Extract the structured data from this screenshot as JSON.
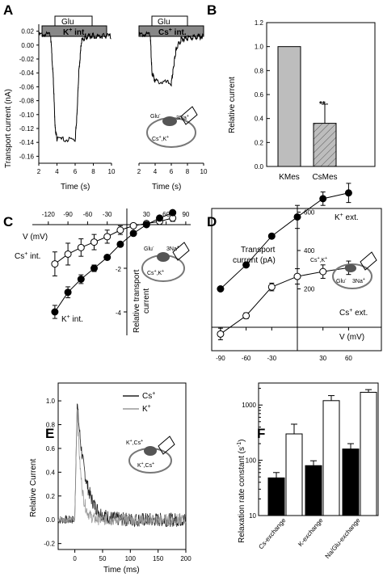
{
  "panels": {
    "A": {
      "label": "A",
      "ylabel": "Transport current (nA)",
      "xlabel": "Time (s)",
      "bar1": "Glu",
      "int1": "K",
      "bar2": "Glu",
      "int2": "Cs",
      "int_suffix": " int."
    },
    "B": {
      "label": "B",
      "ylabel": "Relative current",
      "sig": "**"
    },
    "C": {
      "label": "C",
      "xlabel": "V (mV)",
      "ylabel": "Relative transport",
      "ylabel2": "current",
      "cs": "Cs",
      "k": "K",
      "int_suffix": " int."
    },
    "D": {
      "label": "D",
      "ylabel": "Transport",
      "ylabel2": "current (pA)",
      "xlabel": "V (mV)",
      "k": "K",
      "cs": "Cs",
      "ext_suffix": " ext."
    },
    "E": {
      "label": "E",
      "ylabel": "Relative Current",
      "xlabel": "Time (ms)",
      "leg_cs": "Cs",
      "leg_k": "K"
    },
    "F": {
      "label": "F",
      "ylabel": "Relaxation rate constant (s",
      "ylabel_sup": "-1",
      "ylabel_end": ")"
    }
  },
  "schematic": {
    "glu": "Glu",
    "na": "3Na",
    "csk": "Cs",
    "kk": "K"
  },
  "chart_data": [
    {
      "panel": "A",
      "type": "line",
      "xlabel": "Time (s)",
      "ylabel": "Transport current (nA)",
      "xlim": [
        2,
        10
      ],
      "ylim": [
        -0.17,
        0.03
      ],
      "xticks": [
        2,
        4,
        6,
        8,
        10
      ],
      "yticks": [
        0.02,
        0.0,
        -0.02,
        -0.04,
        -0.06,
        -0.08,
        -0.1,
        -0.12,
        -0.14,
        -0.16
      ],
      "series": [
        {
          "name": "K",
          "x": [
            2.0,
            3.3,
            3.6,
            3.8,
            4.0,
            6.0,
            6.2,
            6.4,
            6.7,
            7.2,
            8,
            9,
            10
          ],
          "y": [
            0.015,
            0.015,
            -0.05,
            -0.12,
            -0.135,
            -0.137,
            -0.1,
            -0.04,
            0.006,
            0.012,
            0.013,
            0.013,
            0.013
          ]
        },
        {
          "name": "Cs",
          "x": [
            2.0,
            3.4,
            3.6,
            4.0,
            6.0,
            6.3,
            6.6,
            7.2,
            8,
            9,
            10
          ],
          "y": [
            0.015,
            0.015,
            -0.04,
            -0.052,
            -0.055,
            -0.03,
            -0.005,
            0.008,
            0.01,
            0.012,
            0.012
          ]
        }
      ]
    },
    {
      "panel": "B",
      "type": "bar",
      "categories": [
        "KMes",
        "CsMes"
      ],
      "values": [
        1.0,
        0.36
      ],
      "errors": [
        0,
        0.16
      ],
      "ylim": [
        0,
        1.2
      ],
      "yticks": [
        0.0,
        0.2,
        0.4,
        0.6,
        0.8,
        1.0,
        1.2
      ],
      "ylabel": "Relative current"
    },
    {
      "panel": "C",
      "type": "scatter",
      "xlabel": "V (mV)",
      "ylabel": "Relative transport current",
      "xticks": [
        -120,
        -90,
        -60,
        -30,
        30,
        60,
        90
      ],
      "yticks": [
        -2,
        -4
      ],
      "series": [
        {
          "name": "Cs",
          "x": [
            -110,
            -90,
            -70,
            -50,
            -30,
            -10,
            10,
            30,
            50,
            70
          ],
          "y": [
            -1.8,
            -1.35,
            -1.05,
            -0.8,
            -0.55,
            -0.25,
            -0.05,
            0.05,
            0.15,
            0.3
          ],
          "err": [
            0.55,
            0.5,
            0.4,
            0.35,
            0.3,
            0.2,
            0.1,
            0.1,
            0.1,
            0.15
          ]
        },
        {
          "name": "K",
          "x": [
            -110,
            -90,
            -70,
            -50,
            -30,
            -10,
            10,
            30,
            50,
            70
          ],
          "y": [
            -4.0,
            -3.1,
            -2.5,
            -2.0,
            -1.5,
            -0.9,
            -0.4,
            0.0,
            0.3,
            0.55
          ],
          "err": [
            0.3,
            0.25,
            0.2,
            0.15,
            0.1,
            0.1,
            0.05,
            0.05,
            0.05,
            0.05
          ]
        }
      ]
    },
    {
      "panel": "D",
      "type": "scatter",
      "xlabel": "V (mV)",
      "ylabel": "Transport current (pA)",
      "xlim": [
        -100,
        70
      ],
      "ylim": [
        -60,
        780
      ],
      "xticks": [
        -90,
        -60,
        -30,
        30,
        60
      ],
      "yticks": [
        200,
        400,
        600
      ],
      "series": [
        {
          "name": "K",
          "x": [
            -90,
            -60,
            -30,
            0,
            30,
            60
          ],
          "y": [
            200,
            325,
            475,
            575,
            670,
            700
          ],
          "err": [
            10,
            10,
            10,
            60,
            35,
            50
          ]
        },
        {
          "name": "Cs",
          "x": [
            -90,
            -60,
            -30,
            0,
            30,
            60
          ],
          "y": [
            -35,
            60,
            210,
            265,
            290,
            310
          ],
          "err": [
            30,
            15,
            20,
            40,
            35,
            35
          ]
        }
      ]
    },
    {
      "panel": "E",
      "type": "line",
      "xlabel": "Time (ms)",
      "ylabel": "Relative Current",
      "xlim": [
        -30,
        200
      ],
      "ylim": [
        -0.25,
        1.15
      ],
      "xticks": [
        0,
        50,
        100,
        150,
        200
      ],
      "yticks": [
        -0.2,
        0.0,
        0.2,
        0.4,
        0.6,
        0.8,
        1.0
      ],
      "series": [
        {
          "name": "Cs",
          "tau": 15
        },
        {
          "name": "K",
          "tau": 7
        }
      ]
    },
    {
      "panel": "F",
      "type": "bar",
      "categories": [
        "Cs-exchange",
        "K-exchange",
        "Na/Glu-exchange"
      ],
      "ylim": [
        10,
        2500
      ],
      "yticks": [
        10,
        100,
        1000
      ],
      "series": [
        {
          "name": "filled",
          "values": [
            48,
            80,
            160
          ],
          "errors": [
            12,
            18,
            40
          ]
        },
        {
          "name": "open",
          "values": [
            300,
            1200,
            1700
          ],
          "errors": [
            150,
            280,
            200
          ]
        }
      ]
    }
  ]
}
